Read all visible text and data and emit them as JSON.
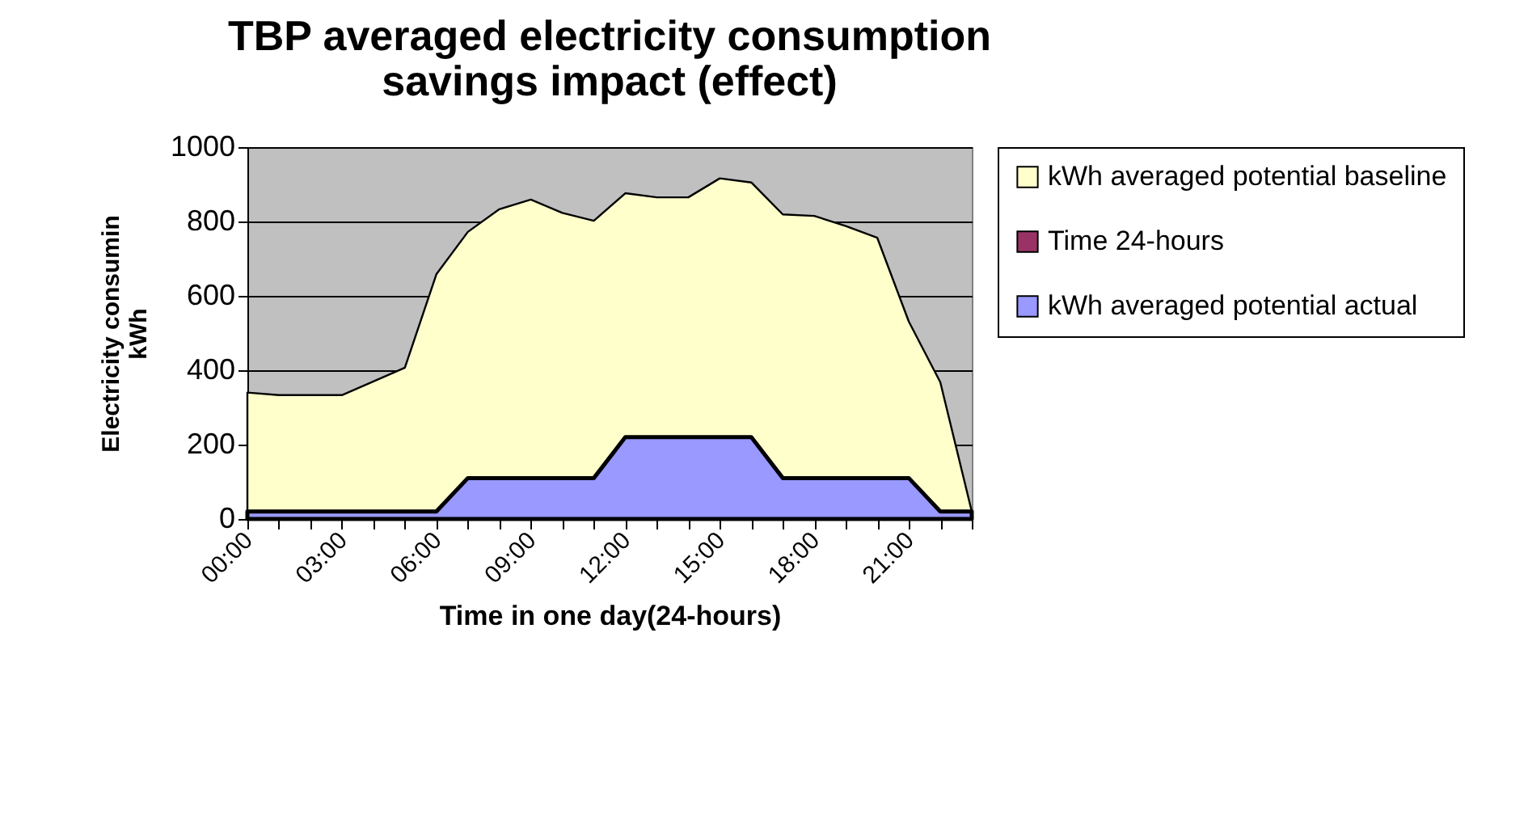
{
  "chart_data": {
    "type": "area",
    "title": "TBP averaged electricity consumption\nsavings impact (effect)",
    "xlabel": "Time in one day(24-hours)",
    "ylabel": "Electricity consumin\nkWh",
    "categories": [
      "00:00",
      null,
      null,
      "03:00",
      null,
      null,
      "06:00",
      null,
      null,
      "09:00",
      null,
      null,
      "12:00",
      null,
      null,
      "15:00",
      null,
      null,
      "18:00",
      null,
      null,
      "21:00",
      null,
      null
    ],
    "series": [
      {
        "name": "kWh averaged potential baseline",
        "color": "#ffffcc",
        "values": [
          340,
          333,
          333,
          333,
          370,
          407,
          658,
          772,
          833,
          859,
          823,
          802,
          876,
          865,
          865,
          916,
          905,
          819,
          815,
          788,
          756,
          531,
          368,
          20
        ]
      },
      {
        "name": "Time 24-hours",
        "color": "#993366",
        "values": [
          null,
          null,
          null,
          null,
          null,
          null,
          null,
          null,
          null,
          null,
          null,
          null,
          null,
          null,
          null,
          null,
          null,
          null,
          null,
          null,
          null,
          null,
          null,
          null
        ]
      },
      {
        "name": "kWh averaged potential actual",
        "color": "#9999ff",
        "values": [
          20,
          20,
          20,
          20,
          20,
          20,
          20,
          110,
          110,
          110,
          110,
          110,
          220,
          220,
          220,
          220,
          220,
          110,
          110,
          110,
          110,
          110,
          20,
          20
        ]
      }
    ],
    "ylim": [
      0,
      1000
    ],
    "yticks": [
      0,
      200,
      400,
      600,
      800,
      1000
    ],
    "grid": "y",
    "legend": "right"
  }
}
